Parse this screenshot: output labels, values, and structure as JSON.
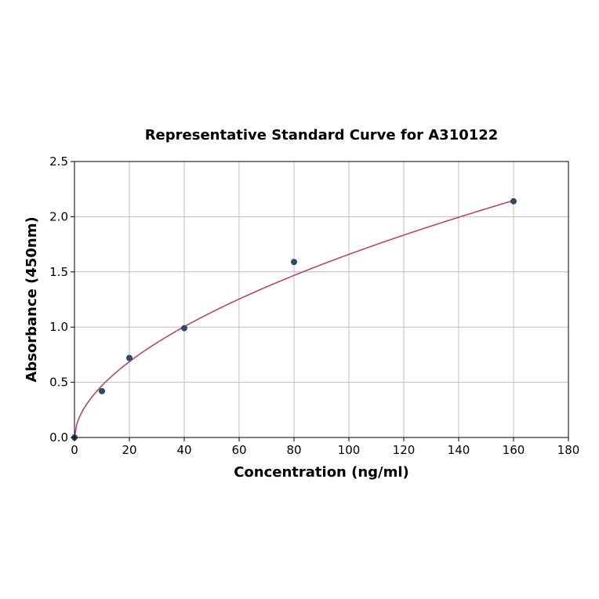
{
  "chart_data": {
    "type": "scatter",
    "title": "Representative Standard Curve for A310122",
    "xlabel": "Concentration (ng/ml)",
    "ylabel": "Absorbance (450nm)",
    "xlim": [
      0,
      180
    ],
    "ylim": [
      0,
      2.5
    ],
    "x_ticks": [
      "0",
      "20",
      "40",
      "60",
      "80",
      "100",
      "120",
      "140",
      "160",
      "180"
    ],
    "y_ticks": [
      "0.0",
      "0.5",
      "1.0",
      "1.5",
      "2.0",
      "2.5"
    ],
    "grid": true,
    "series": [
      {
        "points": [
          {
            "x": 0,
            "y": 0.0
          },
          {
            "x": 10,
            "y": 0.42
          },
          {
            "x": 20,
            "y": 0.72
          },
          {
            "x": 40,
            "y": 0.99
          },
          {
            "x": 80,
            "y": 1.59
          },
          {
            "x": 160,
            "y": 2.14
          }
        ],
        "color": "#2e4a6b"
      }
    ],
    "fit_curve": {
      "type": "power",
      "a": 0.133,
      "b": 0.548,
      "color": "#b5476b"
    }
  }
}
